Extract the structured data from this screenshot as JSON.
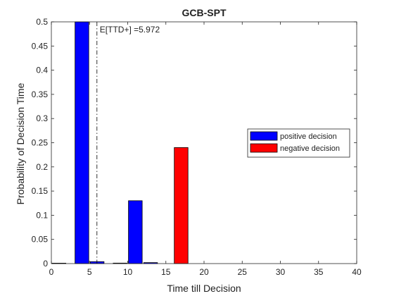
{
  "chart_data": {
    "type": "bar",
    "title": "GCB-SPT",
    "xlabel": "Time till Decision",
    "ylabel": "Probability of Decision Time",
    "xlim": [
      0,
      40
    ],
    "ylim": [
      0,
      0.5
    ],
    "xticks": [
      0,
      5,
      10,
      15,
      20,
      25,
      30,
      35,
      40
    ],
    "yticks": [
      0,
      0.05,
      0.1,
      0.15,
      0.2,
      0.25,
      0.3,
      0.35,
      0.4,
      0.45,
      0.5
    ],
    "xtick_labels": [
      "0",
      "5",
      "10",
      "15",
      "20",
      "25",
      "30",
      "35",
      "40"
    ],
    "ytick_labels": [
      "0",
      "0.05",
      "0.1",
      "0.15",
      "0.2",
      "0.25",
      "0.3",
      "0.35",
      "0.4",
      "0.45",
      "0.5"
    ],
    "bar_width": 1.8,
    "grid": false,
    "legend_position": "center-right",
    "series": [
      {
        "name": "positive decision",
        "color": "#0000ff",
        "bars": [
          {
            "x": 1,
            "value": 0.0005
          },
          {
            "x": 4,
            "value": 0.5
          },
          {
            "x": 6,
            "value": 0.004
          },
          {
            "x": 9,
            "value": 0.001
          },
          {
            "x": 11,
            "value": 0.13
          },
          {
            "x": 13,
            "value": 0.002
          }
        ]
      },
      {
        "name": "negative decision",
        "color": "#ff0000",
        "bars": [
          {
            "x": 17,
            "value": 0.24
          }
        ]
      }
    ],
    "annotations": [
      {
        "type": "vline",
        "x": 5.972,
        "style": "dash-dot",
        "label": "E[TTD+] =5.972"
      }
    ]
  }
}
